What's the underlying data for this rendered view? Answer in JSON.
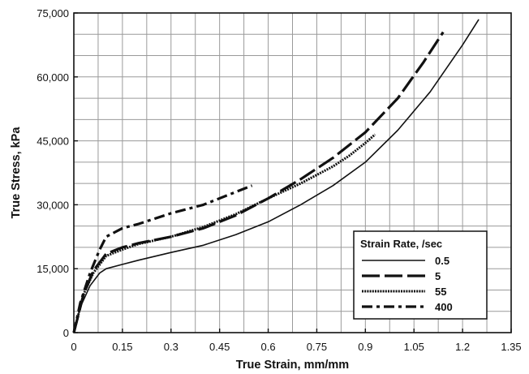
{
  "chart_data": {
    "type": "line",
    "xlabel": "True Strain, mm/mm",
    "ylabel": "True Stress, kPa",
    "xlim": [
      0,
      1.35
    ],
    "ylim": [
      0,
      75000
    ],
    "x_ticks": [
      "0",
      "0.15",
      "0.3",
      "0.45",
      "0.6",
      "0.75",
      "0.9",
      "1.05",
      "1.2",
      "1.35"
    ],
    "y_ticks": [
      "0",
      "15,000",
      "30,000",
      "45,000",
      "60,000",
      "75,000"
    ],
    "grid": true,
    "legend": {
      "title": "Strain Rate, /sec",
      "placement": "bottom-right"
    },
    "series": [
      {
        "name": "0.5",
        "line_style": "solid",
        "color": "#111111",
        "points": [
          [
            0,
            0
          ],
          [
            0.02,
            6000
          ],
          [
            0.05,
            11000
          ],
          [
            0.08,
            14000
          ],
          [
            0.1,
            15000
          ],
          [
            0.15,
            16000
          ],
          [
            0.2,
            17000
          ],
          [
            0.3,
            18800
          ],
          [
            0.4,
            20500
          ],
          [
            0.5,
            23000
          ],
          [
            0.6,
            26000
          ],
          [
            0.7,
            30000
          ],
          [
            0.8,
            34500
          ],
          [
            0.9,
            40000
          ],
          [
            1.0,
            47500
          ],
          [
            1.1,
            56500
          ],
          [
            1.2,
            67500
          ],
          [
            1.25,
            73500
          ]
        ]
      },
      {
        "name": "5",
        "line_style": "long-dash",
        "color": "#111111",
        "points": [
          [
            0,
            0
          ],
          [
            0.03,
            9000
          ],
          [
            0.06,
            14500
          ],
          [
            0.1,
            18500
          ],
          [
            0.15,
            20000
          ],
          [
            0.2,
            21000
          ],
          [
            0.3,
            22500
          ],
          [
            0.4,
            24500
          ],
          [
            0.5,
            27500
          ],
          [
            0.6,
            31500
          ],
          [
            0.7,
            36000
          ],
          [
            0.8,
            41000
          ],
          [
            0.9,
            47000
          ],
          [
            1.0,
            55000
          ],
          [
            1.08,
            63500
          ],
          [
            1.14,
            70500
          ]
        ]
      },
      {
        "name": "55",
        "line_style": "dotted",
        "color": "#111111",
        "points": [
          [
            0,
            0
          ],
          [
            0.03,
            9000
          ],
          [
            0.06,
            14000
          ],
          [
            0.1,
            18000
          ],
          [
            0.15,
            19500
          ],
          [
            0.2,
            20800
          ],
          [
            0.3,
            22500
          ],
          [
            0.4,
            24800
          ],
          [
            0.5,
            27800
          ],
          [
            0.6,
            31500
          ],
          [
            0.7,
            35000
          ],
          [
            0.8,
            39000
          ],
          [
            0.85,
            41500
          ],
          [
            0.9,
            44500
          ],
          [
            0.93,
            46500
          ]
        ]
      },
      {
        "name": "400",
        "line_style": "dash-dot",
        "color": "#111111",
        "points": [
          [
            0,
            0
          ],
          [
            0.02,
            7000
          ],
          [
            0.05,
            14000
          ],
          [
            0.08,
            19500
          ],
          [
            0.1,
            22500
          ],
          [
            0.15,
            24500
          ],
          [
            0.2,
            25500
          ],
          [
            0.3,
            28000
          ],
          [
            0.4,
            30000
          ],
          [
            0.5,
            33000
          ],
          [
            0.55,
            34500
          ]
        ]
      }
    ]
  }
}
